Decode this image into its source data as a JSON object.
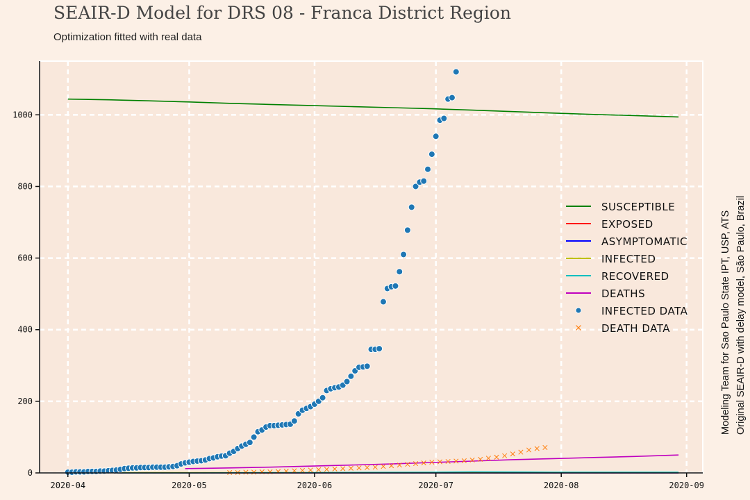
{
  "title": "SEAIR-D Model for DRS 08 - Franca District Region",
  "subtitle": "Optimization fitted with real data",
  "credits": {
    "line1": "Modeling Team for Sao Paulo State IPT, USP, ATS",
    "line2": "Original SEAIR-D with delay model, São Paulo, Brazil"
  },
  "colors": {
    "background": "#fcf0e6",
    "plot_area": "#f9e8dc",
    "grid": "#ffffff",
    "susceptible": "#008000",
    "exposed": "#ff0000",
    "asymptomatic": "#0000ff",
    "infected": "#bfbf00",
    "recovered": "#00bfbf",
    "deaths": "#bf00bf",
    "infected_data": "#1f77b4",
    "death_data": "#ff7f0e"
  },
  "chart_data": {
    "type": "line",
    "title": "SEAIR-D Model for DRS 08 - Franca District Region",
    "xlabel": "",
    "ylabel": "",
    "x_start_day": 0,
    "x_end_day": 151,
    "xlim": [
      -7,
      157
    ],
    "ylim": [
      0,
      1150
    ],
    "grid": true,
    "legend_position": "center-right",
    "x_ticks": [
      {
        "day": 0,
        "label": "2020-04"
      },
      {
        "day": 30,
        "label": "2020-05"
      },
      {
        "day": 61,
        "label": "2020-06"
      },
      {
        "day": 91,
        "label": "2020-07"
      },
      {
        "day": 122,
        "label": "2020-08"
      },
      {
        "day": 153,
        "label": "2020-09"
      }
    ],
    "y_ticks": [
      0,
      200,
      400,
      600,
      800,
      1000
    ],
    "series": [
      {
        "name": "SUSCEPTIBLE",
        "kind": "line",
        "color": "#008000",
        "x": [
          0,
          10,
          20,
          30,
          40,
          50,
          60,
          70,
          80,
          90,
          100,
          110,
          120,
          130,
          140,
          151
        ],
        "y": [
          1044,
          1042,
          1039,
          1036,
          1032,
          1029,
          1026,
          1023,
          1020,
          1017,
          1013,
          1009,
          1005,
          1001,
          998,
          994
        ]
      },
      {
        "name": "EXPOSED",
        "kind": "line",
        "color": "#ff0000",
        "x": [
          0,
          30,
          60,
          90,
          120,
          151
        ],
        "y": [
          0,
          0,
          0,
          0,
          0,
          0
        ]
      },
      {
        "name": "ASYMPTOMATIC",
        "kind": "line",
        "color": "#0000ff",
        "x": [
          0,
          30,
          60,
          90,
          120,
          151
        ],
        "y": [
          0,
          0,
          0,
          0,
          0,
          0
        ]
      },
      {
        "name": "INFECTED",
        "kind": "line",
        "color": "#bfbf00",
        "x": [
          0,
          30,
          60,
          90,
          120,
          151
        ],
        "y": [
          1,
          1,
          1,
          1,
          1,
          1
        ]
      },
      {
        "name": "RECOVERED",
        "kind": "line",
        "color": "#00bfbf",
        "x": [
          0,
          30,
          60,
          90,
          100,
          120,
          151
        ],
        "y": [
          0,
          0,
          1,
          2,
          3,
          2,
          2
        ]
      },
      {
        "name": "DEATHS",
        "kind": "line",
        "color": "#bf00bf",
        "x": [
          29,
          40,
          50,
          60,
          70,
          80,
          90,
          100,
          110,
          120,
          130,
          140,
          151
        ],
        "y": [
          12,
          14,
          16,
          19,
          22,
          25,
          29,
          33,
          37,
          40,
          43,
          46,
          50
        ]
      },
      {
        "name": "INFECTED DATA",
        "kind": "scatter",
        "color": "#1f77b4",
        "x": [
          0,
          1,
          2,
          3,
          4,
          5,
          6,
          7,
          8,
          9,
          10,
          11,
          12,
          13,
          14,
          15,
          16,
          17,
          18,
          19,
          20,
          21,
          22,
          23,
          24,
          25,
          26,
          27,
          28,
          29,
          30,
          31,
          32,
          33,
          34,
          35,
          36,
          37,
          38,
          39,
          40,
          41,
          42,
          43,
          44,
          45,
          46,
          47,
          48,
          49,
          50,
          51,
          52,
          53,
          54,
          55,
          56,
          57,
          58,
          59,
          60,
          61,
          62,
          63,
          64,
          65,
          66,
          67,
          68,
          69,
          70,
          71,
          72,
          73,
          74,
          75,
          76,
          77,
          78,
          79,
          80,
          81,
          82,
          83,
          84,
          85,
          86,
          87,
          88,
          89,
          90,
          91,
          92,
          93,
          94,
          95,
          96,
          97,
          98
        ],
        "y": [
          2,
          2,
          3,
          3,
          3,
          4,
          4,
          4,
          5,
          5,
          6,
          7,
          8,
          10,
          12,
          13,
          14,
          14,
          15,
          15,
          15,
          16,
          16,
          16,
          16,
          17,
          18,
          20,
          25,
          28,
          30,
          32,
          33,
          34,
          36,
          40,
          42,
          45,
          47,
          48,
          55,
          60,
          68,
          75,
          80,
          85,
          100,
          115,
          120,
          128,
          132,
          132,
          133,
          134,
          135,
          136,
          145,
          165,
          175,
          180,
          185,
          192,
          200,
          210,
          230,
          235,
          238,
          240,
          245,
          255,
          270,
          285,
          295,
          296,
          298,
          345,
          345,
          347,
          478,
          515,
          520,
          522,
          562,
          610,
          678,
          742,
          800,
          812,
          815,
          848,
          890,
          940,
          985,
          990,
          1044,
          1048,
          1120,
          null,
          null
        ],
        "size": 4.5
      },
      {
        "name": "DEATH DATA",
        "kind": "x-marker",
        "color": "#ff7f0e",
        "x": [
          40,
          42,
          44,
          46,
          48,
          50,
          52,
          54,
          56,
          58,
          60,
          62,
          64,
          66,
          68,
          70,
          72,
          74,
          76,
          78,
          80,
          82,
          84,
          86,
          88,
          90,
          92,
          94,
          96,
          98,
          100,
          102,
          104,
          106,
          108,
          110,
          112,
          114,
          116,
          118
        ],
        "y": [
          1,
          1,
          2,
          2,
          3,
          3,
          4,
          5,
          6,
          7,
          8,
          9,
          10,
          11,
          12,
          13,
          14,
          15,
          16,
          18,
          20,
          22,
          24,
          26,
          28,
          30,
          31,
          32,
          33,
          34,
          36,
          38,
          41,
          44,
          48,
          53,
          58,
          64,
          68,
          71
        ],
        "size": 4
      }
    ]
  }
}
